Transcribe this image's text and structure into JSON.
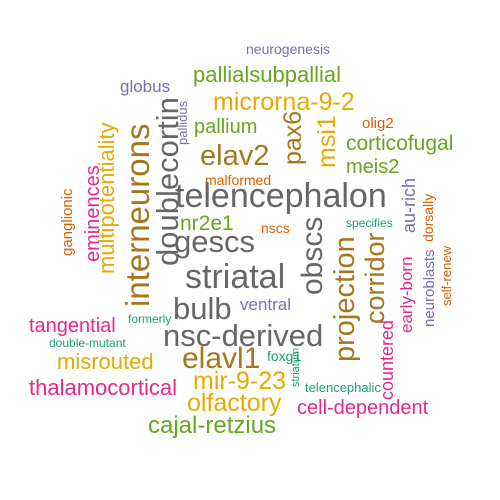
{
  "palette": {
    "green": "#1b9e77",
    "orange": "#d95f02",
    "purple": "#7570b3",
    "pink": "#e7298a",
    "lime": "#66a61e",
    "gold": "#e6ab02",
    "brown": "#a6761d",
    "gray": "#666666"
  },
  "words": [
    {
      "text": "neurogenesis",
      "color": "purple"
    },
    {
      "text": "globus",
      "color": "purple"
    },
    {
      "text": "pallialsubpallial",
      "color": "lime"
    },
    {
      "text": "microrna-9-2",
      "color": "gold"
    },
    {
      "text": "pallium",
      "color": "lime"
    },
    {
      "text": "pallidus",
      "color": "purple"
    },
    {
      "text": "pax6",
      "color": "brown"
    },
    {
      "text": "msi1",
      "color": "gold"
    },
    {
      "text": "olig2",
      "color": "orange"
    },
    {
      "text": "corticofugal",
      "color": "lime"
    },
    {
      "text": "multipotentiality",
      "color": "gold"
    },
    {
      "text": "doublecortin",
      "color": "gray"
    },
    {
      "text": "elav2",
      "color": "brown"
    },
    {
      "text": "malformed",
      "color": "orange"
    },
    {
      "text": "meis2",
      "color": "lime"
    },
    {
      "text": "ganglionic",
      "color": "orange"
    },
    {
      "text": "eminences",
      "color": "pink"
    },
    {
      "text": "telencephalon",
      "color": "gray"
    },
    {
      "text": "au-rich",
      "color": "purple"
    },
    {
      "text": "dorsally",
      "color": "orange"
    },
    {
      "text": "interneurons",
      "color": "brown"
    },
    {
      "text": "nr2e1",
      "color": "lime"
    },
    {
      "text": "nscs",
      "color": "orange"
    },
    {
      "text": "specifies",
      "color": "green"
    },
    {
      "text": "gescs",
      "color": "gray"
    },
    {
      "text": "obscs",
      "color": "gray"
    },
    {
      "text": "corridor",
      "color": "brown"
    },
    {
      "text": "neuroblasts",
      "color": "purple"
    },
    {
      "text": "self-renew",
      "color": "orange"
    },
    {
      "text": "striatal",
      "color": "gray"
    },
    {
      "text": "projection",
      "color": "brown"
    },
    {
      "text": "early-born",
      "color": "pink"
    },
    {
      "text": "bulb",
      "color": "gray"
    },
    {
      "text": "ventral",
      "color": "purple"
    },
    {
      "text": "formerly",
      "color": "green"
    },
    {
      "text": "tangential",
      "color": "pink"
    },
    {
      "text": "nsc-derived",
      "color": "gray"
    },
    {
      "text": "countered",
      "color": "pink"
    },
    {
      "text": "double-mutant",
      "color": "green"
    },
    {
      "text": "foxg1",
      "color": "green"
    },
    {
      "text": "misrouted",
      "color": "gold"
    },
    {
      "text": "elavl1",
      "color": "brown"
    },
    {
      "text": "striatum",
      "color": "green"
    },
    {
      "text": "mir-9-23",
      "color": "gold"
    },
    {
      "text": "thalamocortical",
      "color": "pink"
    },
    {
      "text": "telencephalic",
      "color": "green"
    },
    {
      "text": "olfactory",
      "color": "gold"
    },
    {
      "text": "cell-dependent",
      "color": "pink"
    },
    {
      "text": "cajal-retzius",
      "color": "lime"
    }
  ]
}
